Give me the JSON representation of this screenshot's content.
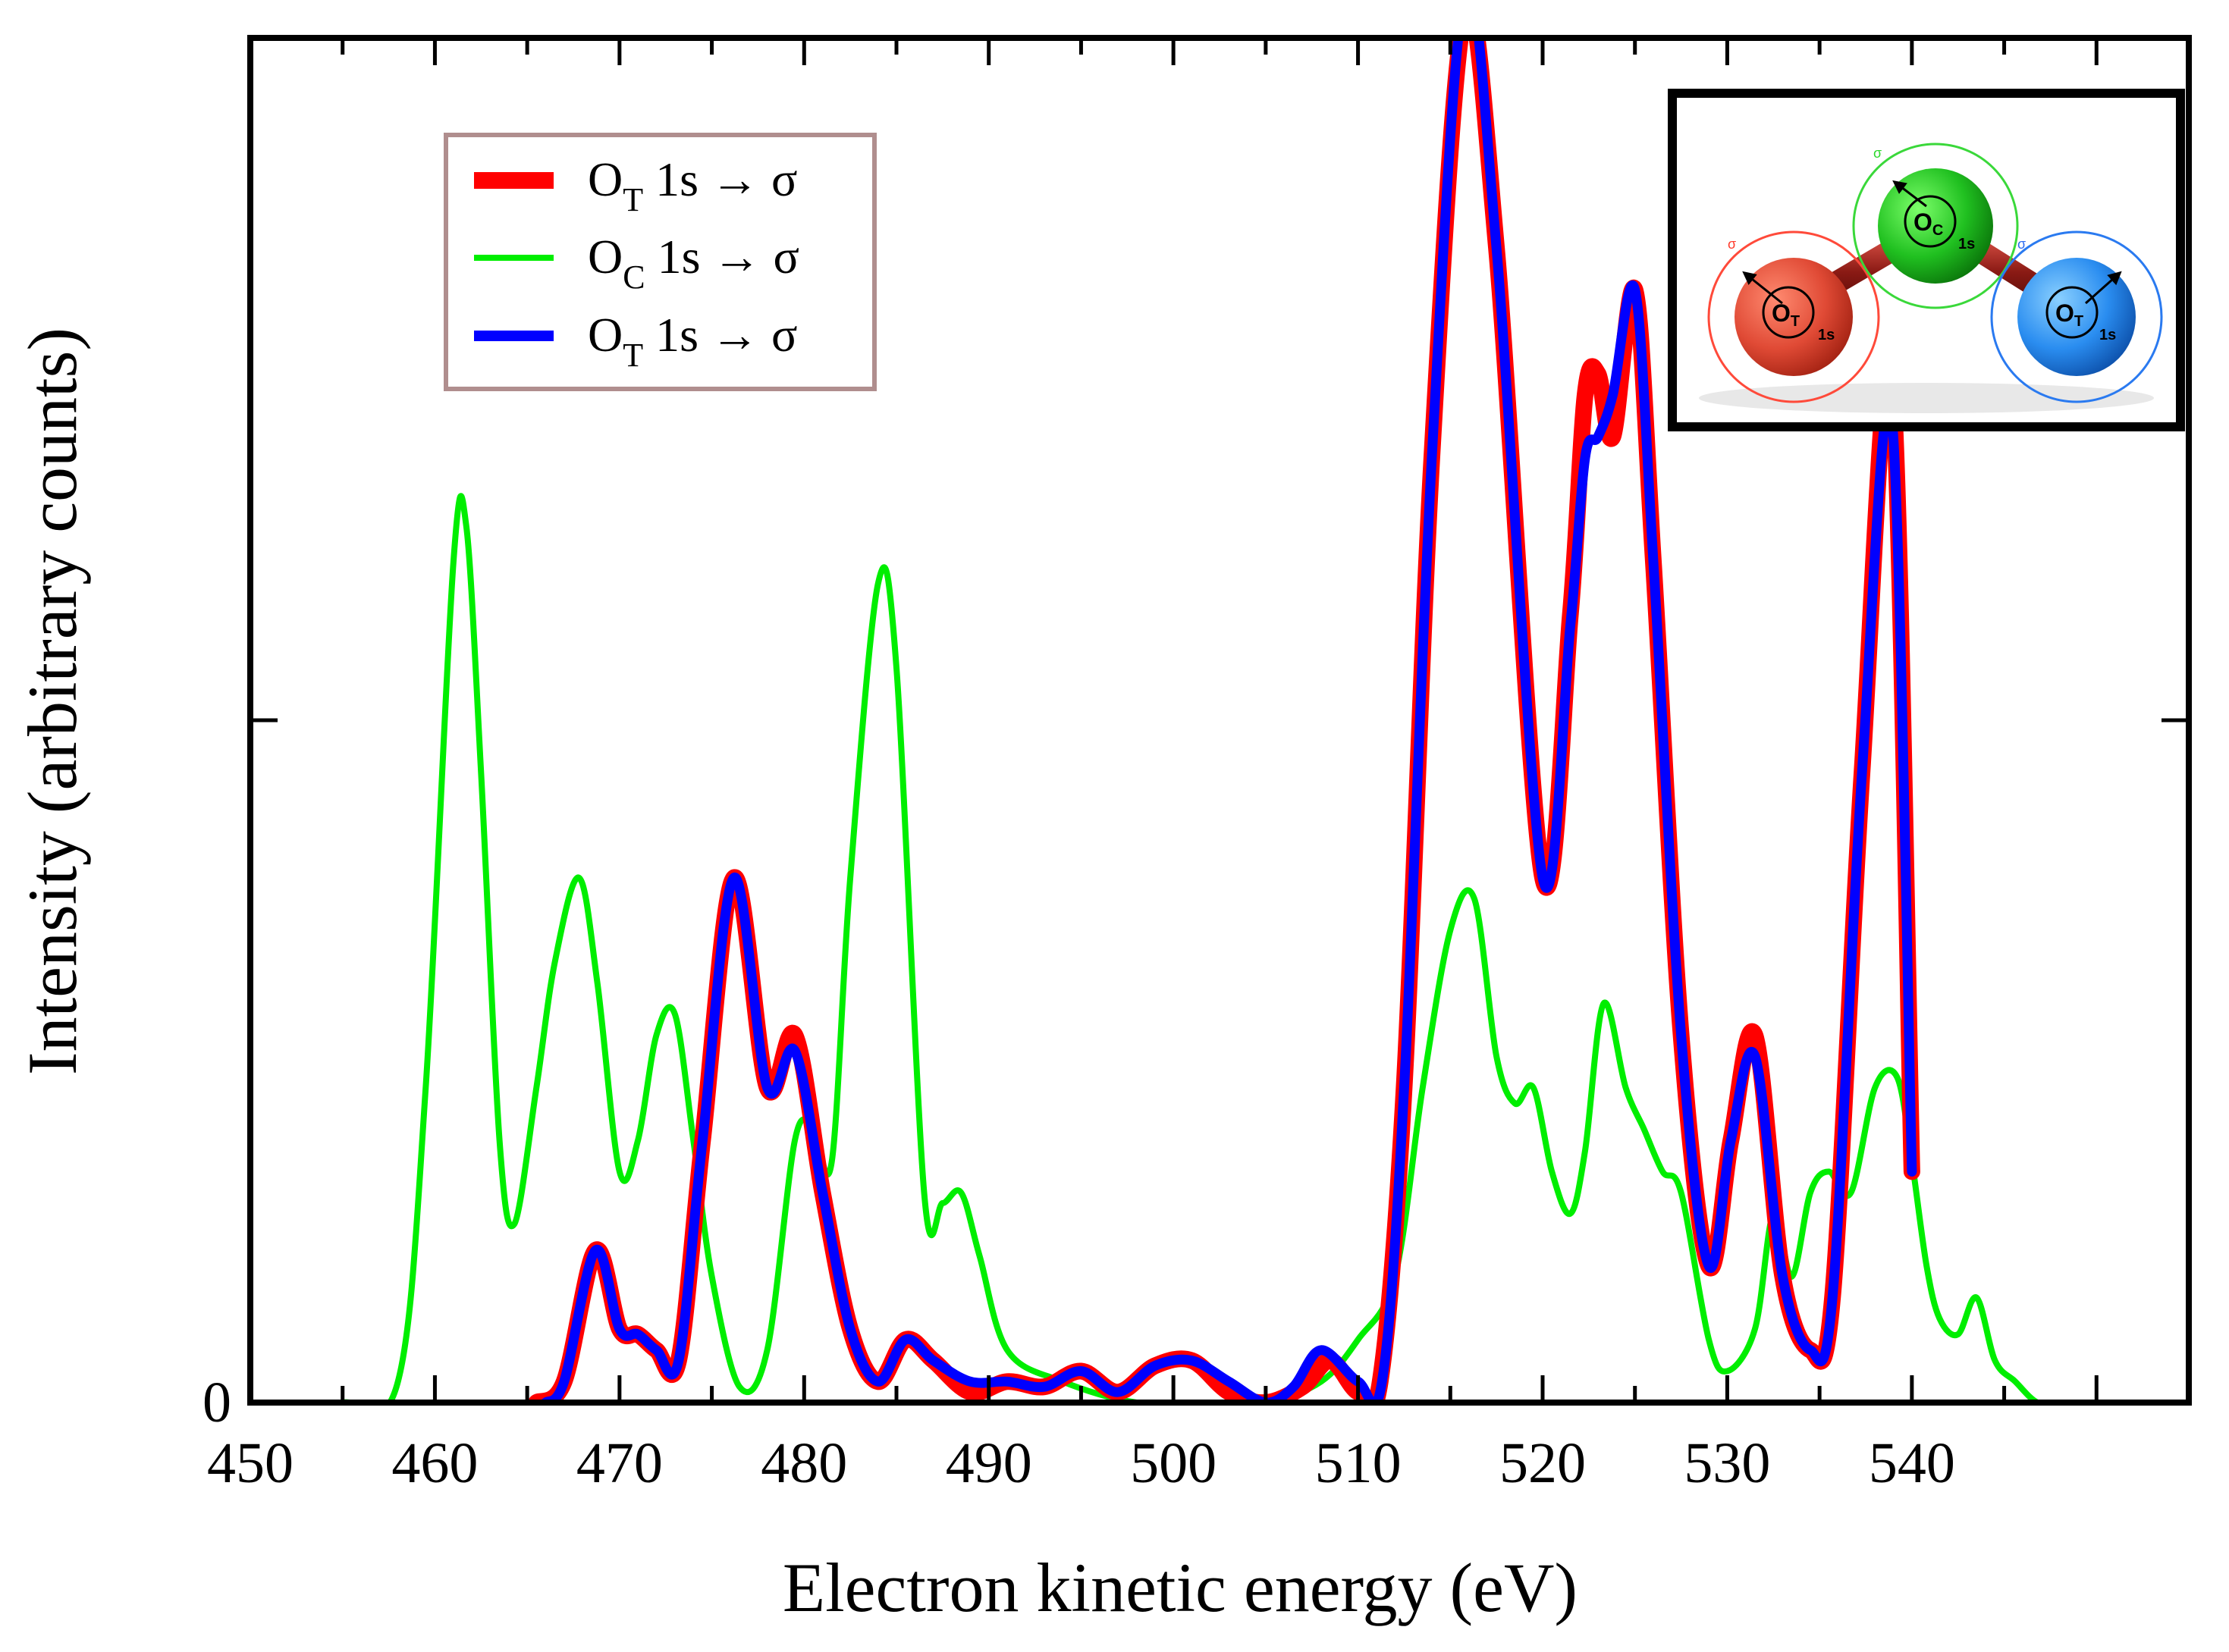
{
  "chart_data": {
    "type": "line",
    "xlabel": "Electron kinetic energy (eV)",
    "ylabel": "Intensity (arbitrary counts)",
    "xlim": [
      450,
      555
    ],
    "ylim": [
      0,
      1.3
    ],
    "x_ticks": [
      450,
      460,
      470,
      480,
      490,
      500,
      510,
      520,
      530,
      540
    ],
    "y_tick_labels": [
      {
        "value": 0,
        "label": "0"
      }
    ],
    "legend": [
      {
        "main": "O",
        "sub": "T",
        "rest": " 1s → σ",
        "color": "#ff0000"
      },
      {
        "main": "O",
        "sub": "C",
        "rest": " 1s → σ",
        "color": "#00ee00"
      },
      {
        "main": "O",
        "sub": "T",
        "rest": " 1s → σ",
        "color": "#0000ff"
      }
    ],
    "series": [
      {
        "name": "O_T 1s -> sigma (red)",
        "color": "#ff0000",
        "x": [
          465.5,
          467.0,
          468.7,
          470.0,
          471.0,
          472.0,
          473.2,
          474.5,
          476.2,
          478.0,
          479.5,
          481.0,
          482.5,
          484.0,
          485.5,
          487.0,
          489.0,
          491.0,
          493.0,
          495.0,
          497.0,
          499.0,
          501.0,
          503.0,
          505.0,
          507.0,
          508.5,
          510.0,
          511.2,
          512.5,
          514.0,
          515.8,
          517.5,
          520.0,
          521.5,
          522.3,
          523.0,
          523.8,
          525.0,
          526.0,
          527.5,
          529.0,
          530.2,
          531.5,
          533.0,
          534.5,
          535.7,
          537.3,
          538.9,
          540.0
        ],
        "y": [
          0.0,
          0.02,
          0.145,
          0.07,
          0.065,
          0.05,
          0.04,
          0.25,
          0.5,
          0.3,
          0.35,
          0.2,
          0.07,
          0.02,
          0.06,
          0.04,
          0.01,
          0.02,
          0.015,
          0.03,
          0.01,
          0.035,
          0.04,
          0.01,
          0.0,
          0.015,
          0.04,
          0.01,
          0.02,
          0.3,
          0.9,
          1.325,
          1.1,
          0.5,
          0.75,
          0.96,
          0.98,
          0.92,
          1.06,
          0.8,
          0.35,
          0.13,
          0.25,
          0.35,
          0.12,
          0.05,
          0.1,
          0.6,
          0.98,
          0.22
        ]
      },
      {
        "name": "O_C 1s -> sigma (green)",
        "color": "#00ee00",
        "x": [
          450,
          455,
          458.0,
          459.5,
          461.0,
          461.7,
          462.5,
          463.5,
          464.3,
          465.5,
          466.5,
          467.8,
          468.8,
          470.0,
          471.0,
          472.0,
          473.0,
          474.0,
          475.0,
          476.5,
          478.0,
          479.5,
          480.5,
          481.5,
          482.5,
          484.0,
          485.0,
          486.5,
          487.5,
          488.5,
          489.5,
          491.0,
          494.0,
          498.0,
          502.0,
          505.0,
          508.0,
          510.0,
          512.0,
          513.5,
          515.0,
          516.3,
          517.5,
          518.5,
          519.5,
          520.5,
          521.5,
          522.3,
          523.3,
          524.5,
          525.5,
          526.5,
          527.5,
          529.0,
          530.0,
          531.5,
          532.5,
          533.5,
          534.5,
          535.5,
          536.7,
          538.0,
          539.2,
          540.0,
          540.8,
          541.5,
          542.5,
          543.5,
          544.5,
          545.6,
          546.8,
          548.0,
          555
        ],
        "y": [
          0.0,
          0.0,
          0.02,
          0.3,
          0.8,
          0.835,
          0.6,
          0.25,
          0.17,
          0.3,
          0.42,
          0.5,
          0.4,
          0.22,
          0.25,
          0.35,
          0.37,
          0.25,
          0.12,
          0.015,
          0.05,
          0.25,
          0.26,
          0.23,
          0.5,
          0.78,
          0.7,
          0.2,
          0.19,
          0.2,
          0.14,
          0.05,
          0.02,
          0.0,
          0.0,
          0.0,
          0.02,
          0.06,
          0.12,
          0.3,
          0.45,
          0.48,
          0.33,
          0.285,
          0.3,
          0.22,
          0.18,
          0.24,
          0.38,
          0.3,
          0.26,
          0.22,
          0.2,
          0.06,
          0.03,
          0.07,
          0.18,
          0.12,
          0.2,
          0.22,
          0.2,
          0.3,
          0.31,
          0.23,
          0.13,
          0.08,
          0.065,
          0.1,
          0.04,
          0.02,
          0.0,
          0.0,
          0.0
        ]
      },
      {
        "name": "O_T 1s -> sigma (blue)",
        "color": "#0000ff",
        "x": [
          466.0,
          467.0,
          468.7,
          470.0,
          471.0,
          472.0,
          473.2,
          474.5,
          476.2,
          478.0,
          479.5,
          481.0,
          482.5,
          484.0,
          485.5,
          487.0,
          489.0,
          491.0,
          493.0,
          495.0,
          497.0,
          499.0,
          501.0,
          503.0,
          505.0,
          506.5,
          508.0,
          510.0,
          511.3,
          512.5,
          514.0,
          515.8,
          517.5,
          520.0,
          521.5,
          522.3,
          523.0,
          523.8,
          525.0,
          526.0,
          527.5,
          529.0,
          530.2,
          531.5,
          533.0,
          534.5,
          535.7,
          537.3,
          538.9,
          540.0
        ],
        "y": [
          0.0,
          0.02,
          0.145,
          0.07,
          0.065,
          0.05,
          0.04,
          0.25,
          0.5,
          0.3,
          0.335,
          0.2,
          0.07,
          0.02,
          0.06,
          0.04,
          0.02,
          0.02,
          0.015,
          0.03,
          0.01,
          0.035,
          0.04,
          0.02,
          0.0,
          0.015,
          0.05,
          0.02,
          0.02,
          0.3,
          0.9,
          1.345,
          1.1,
          0.5,
          0.74,
          0.9,
          0.92,
          0.96,
          1.06,
          0.8,
          0.35,
          0.13,
          0.25,
          0.33,
          0.12,
          0.05,
          0.1,
          0.6,
          0.94,
          0.22
        ]
      }
    ],
    "inset": {
      "atoms": [
        {
          "main": "O",
          "sub": "T",
          "orbital": "1s",
          "sigma": "σ",
          "color": "#e84a3a"
        },
        {
          "main": "O",
          "sub": "C",
          "orbital": "1s",
          "sigma": "σ",
          "color": "#22c422"
        },
        {
          "main": "O",
          "sub": "T",
          "orbital": "1s",
          "sigma": "σ",
          "color": "#2a8df0"
        }
      ]
    }
  }
}
